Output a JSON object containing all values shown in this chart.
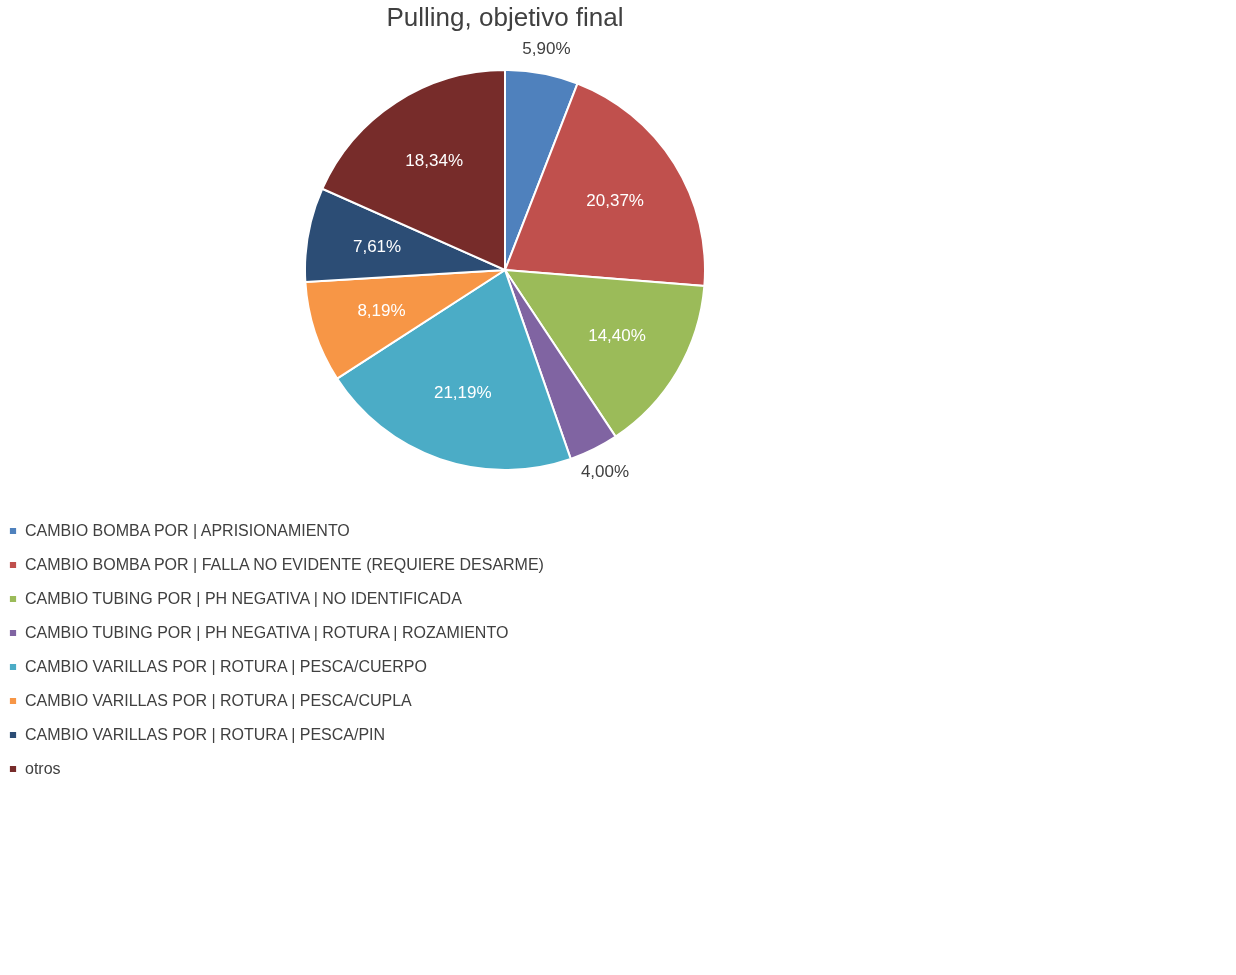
{
  "chart_data": {
    "type": "pie",
    "title": "Pulling, objetivo final",
    "categories": [
      "CAMBIO BOMBA POR | APRISIONAMIENTO",
      "CAMBIO BOMBA POR | FALLA NO EVIDENTE (REQUIERE DESARME)",
      "CAMBIO TUBING POR | PH NEGATIVA | NO IDENTIFICADA",
      "CAMBIO TUBING POR | PH NEGATIVA | ROTURA | ROZAMIENTO",
      "CAMBIO VARILLAS POR | ROTURA | PESCA/CUERPO",
      "CAMBIO VARILLAS POR | ROTURA | PESCA/CUPLA",
      "CAMBIO VARILLAS POR | ROTURA | PESCA/PIN",
      "otros"
    ],
    "values": [
      5.9,
      20.37,
      14.4,
      4.0,
      21.19,
      8.19,
      7.61,
      18.34
    ],
    "colors": [
      "#4f81bd",
      "#c0504d",
      "#9bbb59",
      "#8064a2",
      "#4bacc6",
      "#f79646",
      "#2c4d75",
      "#772c2a"
    ],
    "value_labels": [
      "5,90%",
      "20,37%",
      "14,40%",
      "4,00%",
      "21,19%",
      "8,19%",
      "7,61%",
      "18,34%"
    ],
    "legend": "bottom"
  }
}
